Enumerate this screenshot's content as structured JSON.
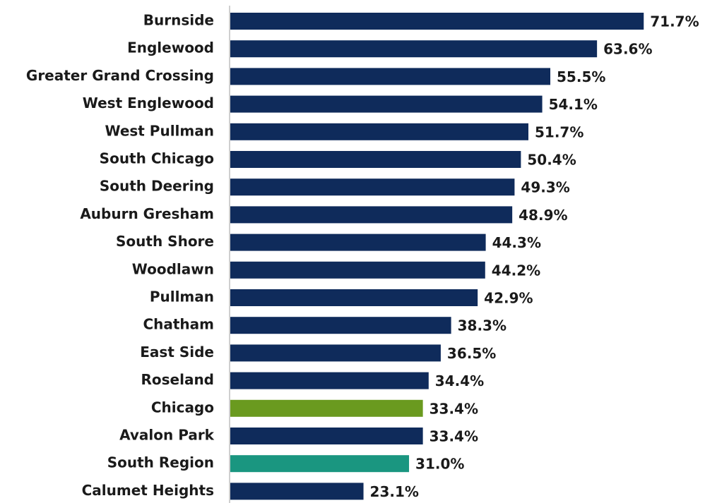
{
  "chart_data": {
    "type": "bar",
    "orientation": "horizontal",
    "categories": [
      "Burnside",
      "Englewood",
      "Greater Grand Crossing",
      "West Englewood",
      "West Pullman",
      "South Chicago",
      "South Deering",
      "Auburn Gresham",
      "South Shore",
      "Woodlawn",
      "Pullman",
      "Chatham",
      "East Side",
      "Roseland",
      "Chicago",
      "Avalon Park",
      "South Region",
      "Calumet Heights"
    ],
    "values": [
      71.7,
      63.6,
      55.5,
      54.1,
      51.7,
      50.4,
      49.3,
      48.9,
      44.3,
      44.2,
      42.9,
      38.3,
      36.5,
      34.4,
      33.4,
      33.4,
      31.0,
      23.1
    ],
    "value_labels": [
      "71.7%",
      "63.6%",
      "55.5%",
      "54.1%",
      "51.7%",
      "50.4%",
      "49.3%",
      "48.9%",
      "44.3%",
      "44.2%",
      "42.9%",
      "38.3%",
      "36.5%",
      "34.4%",
      "33.4%",
      "33.4%",
      "31.0%",
      "23.1%"
    ],
    "colors": [
      "#0f2b5b",
      "#0f2b5b",
      "#0f2b5b",
      "#0f2b5b",
      "#0f2b5b",
      "#0f2b5b",
      "#0f2b5b",
      "#0f2b5b",
      "#0f2b5b",
      "#0f2b5b",
      "#0f2b5b",
      "#0f2b5b",
      "#0f2b5b",
      "#0f2b5b",
      "#6a9a1f",
      "#0f2b5b",
      "#1a9680",
      "#0f2b5b"
    ],
    "xlim": [
      0,
      80
    ]
  }
}
